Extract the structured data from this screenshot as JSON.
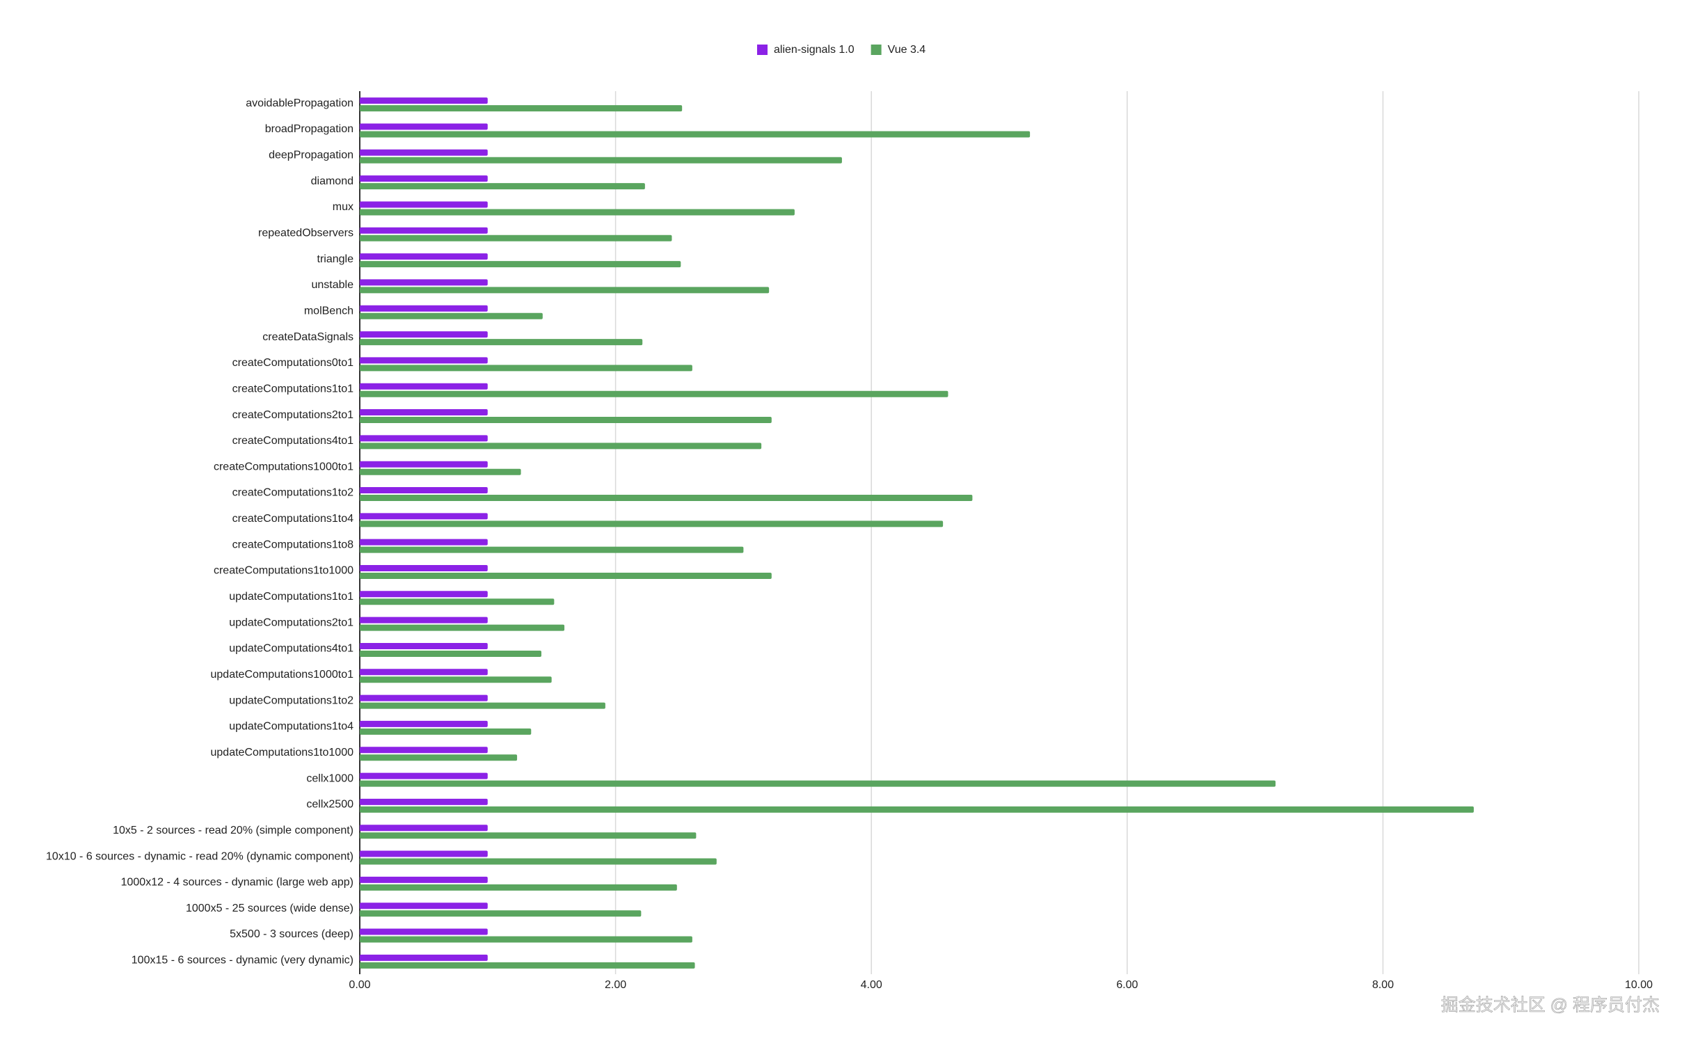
{
  "chart_data": {
    "type": "bar",
    "orientation": "horizontal",
    "categories": [
      "avoidablePropagation",
      "broadPropagation",
      "deepPropagation",
      "diamond",
      "mux",
      "repeatedObservers",
      "triangle",
      "unstable",
      "molBench",
      "createDataSignals",
      "createComputations0to1",
      "createComputations1to1",
      "createComputations2to1",
      "createComputations4to1",
      "createComputations1000to1",
      "createComputations1to2",
      "createComputations1to4",
      "createComputations1to8",
      "createComputations1to1000",
      "updateComputations1to1",
      "updateComputations2to1",
      "updateComputations4to1",
      "updateComputations1000to1",
      "updateComputations1to2",
      "updateComputations1to4",
      "updateComputations1to1000",
      "cellx1000",
      "cellx2500",
      "10x5 - 2 sources - read 20% (simple component)",
      "10x10 - 6 sources - dynamic - read 20% (dynamic component)",
      "1000x12 - 4 sources - dynamic (large web app)",
      "1000x5 - 25 sources (wide dense)",
      "5x500 - 3 sources (deep)",
      "100x15 - 6 sources - dynamic (very dynamic)"
    ],
    "series": [
      {
        "name": "alien-signals 1.0",
        "color": "#8b22e6",
        "values": [
          1,
          1,
          1,
          1,
          1,
          1,
          1,
          1,
          1,
          1,
          1,
          1,
          1,
          1,
          1,
          1,
          1,
          1,
          1,
          1,
          1,
          1,
          1,
          1,
          1,
          1,
          1,
          1,
          1,
          1,
          1,
          1,
          1,
          1
        ]
      },
      {
        "name": "Vue 3.4",
        "color": "#5aa55f",
        "values": [
          2.52,
          5.24,
          3.77,
          2.23,
          3.4,
          2.44,
          2.51,
          3.2,
          1.43,
          2.21,
          2.6,
          4.6,
          3.22,
          3.14,
          1.26,
          4.79,
          4.56,
          3.0,
          3.22,
          1.52,
          1.6,
          1.42,
          1.5,
          1.92,
          1.34,
          1.23,
          7.16,
          8.71,
          2.63,
          2.79,
          2.48,
          2.2,
          2.6,
          2.62
        ]
      }
    ],
    "xlim": [
      0,
      10
    ],
    "xticks": [
      {
        "value": 0,
        "label": "0.00"
      },
      {
        "value": 2,
        "label": "2.00"
      },
      {
        "value": 4,
        "label": "4.00"
      },
      {
        "value": 6,
        "label": "6.00"
      },
      {
        "value": 8,
        "label": "8.00"
      },
      {
        "value": 10,
        "label": "10.00"
      }
    ],
    "grid": true,
    "legend": "top",
    "watermark": "掘金技术社区 @ 程序员付杰"
  }
}
